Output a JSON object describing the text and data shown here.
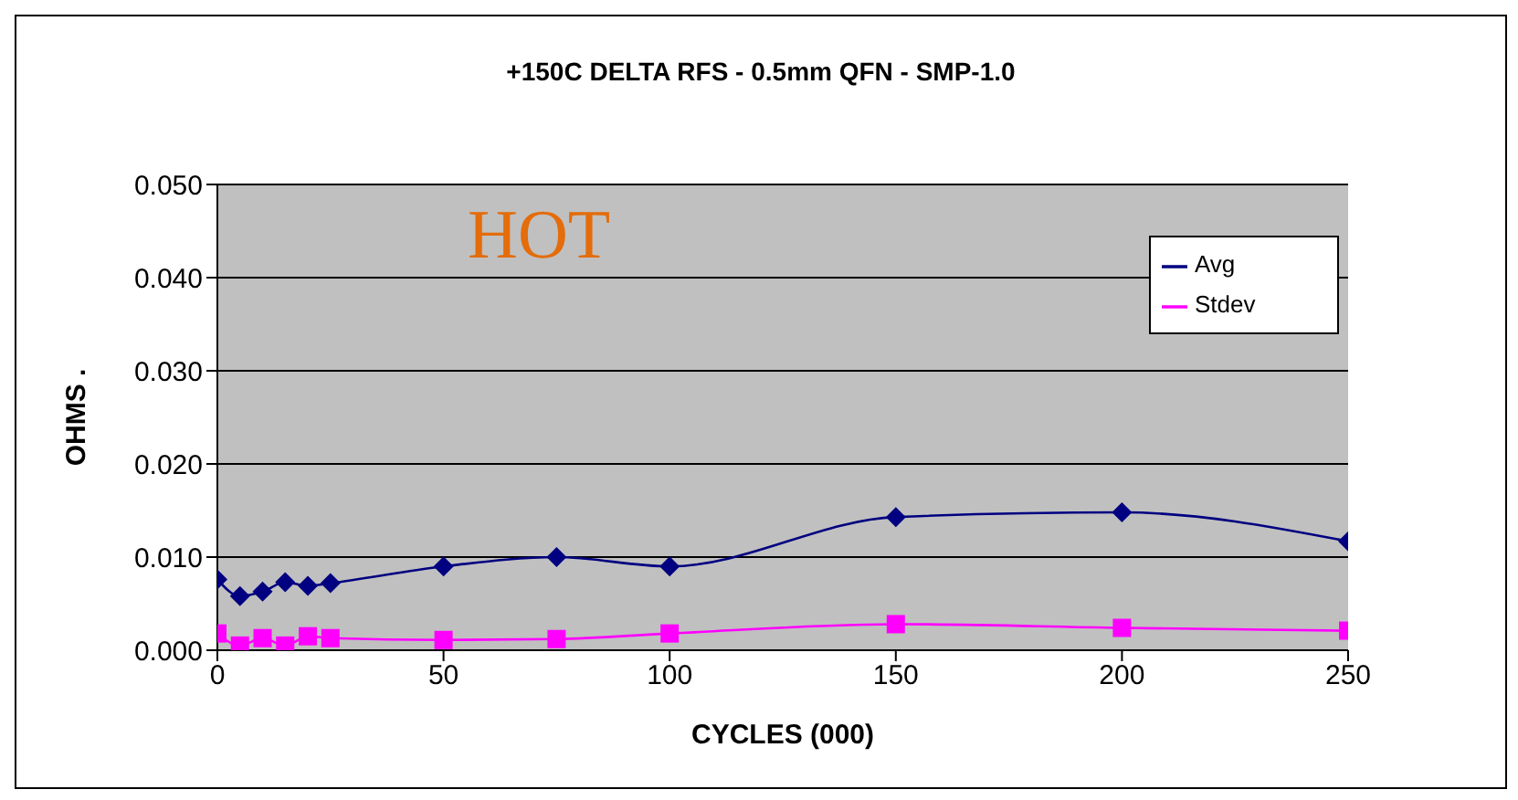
{
  "chart_data": {
    "type": "line",
    "title": "+150C DELTA RFS - 0.5mm QFN - SMP-1.0",
    "xlabel": "CYCLES (000)",
    "ylabel": "OHMS .",
    "annotations": [
      "HOT"
    ],
    "x": [
      0,
      5,
      10,
      15,
      20,
      25,
      50,
      75,
      100,
      150,
      200,
      250
    ],
    "series": [
      {
        "name": "Avg",
        "color": "#000080",
        "marker": "diamond",
        "values": [
          0.0076,
          0.0058,
          0.0063,
          0.0073,
          0.0069,
          0.0072,
          0.009,
          0.01,
          0.009,
          0.0143,
          0.0148,
          0.0117
        ]
      },
      {
        "name": "Stdev",
        "color": "#ff00ff",
        "marker": "square",
        "values": [
          0.0018,
          0.0005,
          0.0013,
          0.0005,
          0.0015,
          0.0013,
          0.0011,
          0.0012,
          0.0018,
          0.0028,
          0.0024,
          0.0021
        ]
      }
    ],
    "xlim": [
      0,
      250
    ],
    "xticks": [
      0,
      50,
      100,
      150,
      200,
      250
    ],
    "ylim": [
      0,
      0.05
    ],
    "yticks": [
      {
        "value": 0,
        "label": "0.000"
      },
      {
        "value": 0.01,
        "label": "0.010"
      },
      {
        "value": 0.02,
        "label": "0.020"
      },
      {
        "value": 0.03,
        "label": "0.030"
      },
      {
        "value": 0.04,
        "label": "0.040"
      },
      {
        "value": 0.05,
        "label": "0.050"
      }
    ],
    "grid": "y",
    "legend": "top right"
  }
}
